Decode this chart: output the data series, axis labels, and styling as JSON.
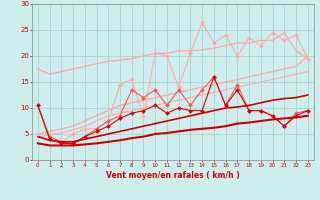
{
  "xlabel": "Vent moyen/en rafales ( km/h )",
  "xlim": [
    -0.5,
    23.5
  ],
  "ylim": [
    0,
    30
  ],
  "xticks": [
    0,
    1,
    2,
    3,
    4,
    5,
    6,
    7,
    8,
    9,
    10,
    11,
    12,
    13,
    14,
    15,
    16,
    17,
    18,
    19,
    20,
    21,
    22,
    23
  ],
  "yticks": [
    0,
    5,
    10,
    15,
    20,
    25,
    30
  ],
  "bg_color": "#ceeeed",
  "grid_color": "#aad4d4",
  "lines": [
    {
      "x": [
        0,
        1,
        2,
        3,
        4,
        5,
        6,
        7,
        8,
        9,
        10,
        11,
        12,
        13,
        14,
        15,
        16,
        17,
        18,
        19,
        20,
        21,
        22,
        23
      ],
      "y": [
        17.5,
        16.5,
        17.0,
        17.5,
        18.0,
        18.5,
        19.0,
        19.2,
        19.5,
        20.0,
        20.5,
        20.5,
        21.0,
        21.0,
        21.2,
        21.5,
        22.0,
        22.5,
        22.5,
        23.0,
        23.0,
        24.5,
        21.0,
        19.5
      ],
      "color": "#ffaaaa",
      "lw": 1.0,
      "marker": null,
      "ms": 0,
      "zorder": 2
    },
    {
      "x": [
        0,
        1,
        2,
        3,
        4,
        5,
        6,
        7,
        8,
        9,
        10,
        11,
        12,
        13,
        14,
        15,
        16,
        17,
        18,
        19,
        20,
        21,
        22,
        23
      ],
      "y": [
        5.0,
        5.5,
        6.0,
        6.5,
        7.5,
        8.5,
        9.5,
        10.5,
        11.0,
        11.5,
        12.0,
        12.5,
        13.0,
        13.5,
        14.0,
        14.5,
        15.0,
        15.5,
        16.0,
        16.5,
        17.0,
        17.5,
        18.0,
        20.0
      ],
      "color": "#ffaaaa",
      "lw": 1.0,
      "marker": null,
      "ms": 0,
      "zorder": 2
    },
    {
      "x": [
        0,
        1,
        2,
        3,
        4,
        5,
        6,
        7,
        8,
        9,
        10,
        11,
        12,
        13,
        14,
        15,
        16,
        17,
        18,
        19,
        20,
        21,
        22,
        23
      ],
      "y": [
        4.5,
        4.8,
        5.2,
        5.8,
        6.5,
        7.5,
        8.5,
        9.0,
        9.5,
        10.0,
        10.5,
        11.0,
        11.5,
        12.0,
        12.5,
        13.0,
        13.5,
        14.0,
        14.5,
        15.0,
        15.5,
        16.0,
        16.5,
        17.0
      ],
      "color": "#ffaaaa",
      "lw": 0.8,
      "marker": null,
      "ms": 0,
      "zorder": 2
    },
    {
      "x": [
        2,
        3,
        4,
        5,
        6,
        7,
        8,
        9,
        10,
        11,
        12,
        13,
        14,
        15,
        16,
        17,
        18,
        19,
        20,
        21,
        22,
        23
      ],
      "y": [
        3.5,
        5.0,
        6.0,
        6.0,
        7.5,
        14.5,
        15.5,
        8.5,
        20.5,
        20.0,
        14.0,
        20.5,
        26.5,
        22.5,
        24.0,
        20.0,
        23.5,
        22.0,
        24.5,
        23.0,
        24.0,
        19.5
      ],
      "color": "#ffaaaa",
      "lw": 0.8,
      "marker": "D",
      "ms": 2.0,
      "zorder": 3
    },
    {
      "x": [
        0,
        1,
        2,
        3,
        4,
        5,
        6,
        7,
        8,
        9,
        10,
        11,
        12,
        13,
        14,
        15,
        16,
        17,
        18,
        19,
        20,
        21,
        22,
        23
      ],
      "y": [
        10.5,
        4.5,
        3.5,
        3.0,
        4.5,
        6.0,
        7.5,
        8.5,
        13.5,
        12.0,
        13.5,
        10.5,
        13.5,
        10.5,
        13.5,
        16.0,
        10.5,
        14.5,
        9.5,
        9.5,
        8.5,
        6.5,
        9.0,
        9.5
      ],
      "color": "#ff5555",
      "lw": 0.8,
      "marker": "D",
      "ms": 2.0,
      "zorder": 3
    },
    {
      "x": [
        0,
        1,
        2,
        3,
        4,
        5,
        6,
        7,
        8,
        9,
        10,
        11,
        12,
        13,
        14,
        15,
        16,
        17,
        18,
        19,
        20,
        21,
        22,
        23
      ],
      "y": [
        10.5,
        4.0,
        3.2,
        3.2,
        4.5,
        5.5,
        6.5,
        8.0,
        9.0,
        9.5,
        10.5,
        9.0,
        10.0,
        9.5,
        9.5,
        16.0,
        10.5,
        13.5,
        9.5,
        9.5,
        8.5,
        6.5,
        8.5,
        9.5
      ],
      "color": "#dd0000",
      "lw": 0.8,
      "marker": "D",
      "ms": 2.0,
      "zorder": 4
    },
    {
      "x": [
        0,
        1,
        2,
        3,
        4,
        5,
        6,
        7,
        8,
        9,
        10,
        11,
        12,
        13,
        14,
        15,
        16,
        17,
        18,
        19,
        20,
        21,
        22,
        23
      ],
      "y": [
        3.2,
        2.8,
        2.8,
        2.8,
        3.0,
        3.2,
        3.5,
        3.8,
        4.2,
        4.5,
        5.0,
        5.2,
        5.5,
        5.8,
        6.0,
        6.2,
        6.5,
        7.0,
        7.2,
        7.5,
        7.8,
        8.0,
        8.2,
        8.5
      ],
      "color": "#cc0000",
      "lw": 1.5,
      "marker": null,
      "ms": 0,
      "zorder": 5
    },
    {
      "x": [
        0,
        1,
        2,
        3,
        4,
        5,
        6,
        7,
        8,
        9,
        10,
        11,
        12,
        13,
        14,
        15,
        16,
        17,
        18,
        19,
        20,
        21,
        22,
        23
      ],
      "y": [
        4.5,
        3.8,
        3.5,
        3.5,
        4.0,
        4.5,
        5.0,
        5.5,
        6.0,
        6.5,
        7.0,
        7.5,
        8.0,
        8.5,
        9.0,
        9.5,
        10.0,
        10.2,
        10.5,
        11.0,
        11.5,
        11.8,
        12.0,
        12.5
      ],
      "color": "#cc0000",
      "lw": 1.2,
      "marker": null,
      "ms": 0,
      "zorder": 4
    }
  ]
}
